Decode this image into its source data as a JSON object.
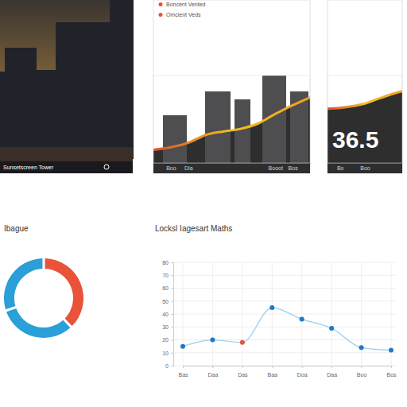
{
  "photo": {
    "caption": "Sunsetscreen Tower"
  },
  "chart_data": [
    {
      "type": "area",
      "annotations": [
        "Boncent Vented",
        "Omcient Veds"
      ],
      "categories": [
        null,
        "Boo",
        "Dla",
        null,
        null,
        null,
        null,
        "Booot",
        "Bos",
        null
      ],
      "values": [
        15,
        18,
        23,
        32,
        36,
        39,
        45,
        56,
        66,
        75
      ],
      "ylim": [
        0,
        100
      ],
      "tick_labels": "x",
      "color": "#f0a020"
    },
    {
      "type": "area",
      "annotations": [
        "36.5"
      ],
      "categories": [
        null,
        "Bo",
        null,
        "Boo",
        null,
        null,
        null
      ],
      "values": [
        62,
        63,
        65,
        68,
        73,
        78,
        82
      ],
      "ylim": [
        0,
        100
      ],
      "tick_labels": "x",
      "color": "#f0a020"
    },
    {
      "type": "pie",
      "title": "Ibague",
      "values": [
        38,
        32,
        30
      ],
      "colors": [
        "#e8533a",
        "#2a9fd8",
        "#2a9fd8"
      ]
    },
    {
      "type": "line",
      "title": "Locksl Iagesart Maths",
      "categories": [
        "Bas",
        "Daa",
        "Das",
        "Baa",
        "Doa",
        "Daa",
        "Boo",
        "Bos"
      ],
      "values": [
        15,
        20,
        18,
        45,
        36,
        29,
        14,
        12
      ],
      "colors": [
        "#1f78c8",
        "#1f78c8",
        "#e8533a",
        "#1f78c8",
        "#1f78c8",
        "#1f78c8",
        "#1f78c8",
        "#1f78c8"
      ],
      "color": "#a8d4ee",
      "marker": "circle",
      "ylim": [
        0,
        80
      ],
      "yticks": [
        0,
        10,
        20,
        30,
        40,
        50,
        60,
        70,
        80
      ],
      "grid": true
    }
  ]
}
